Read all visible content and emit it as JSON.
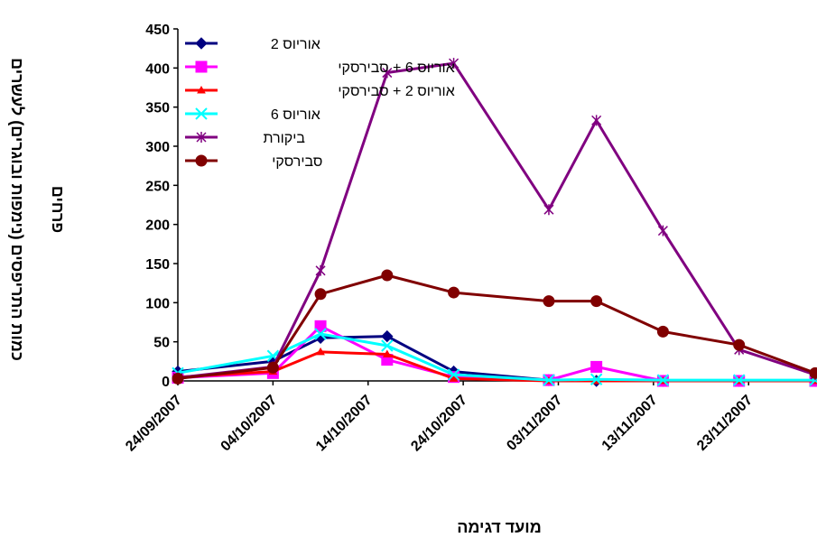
{
  "chart_data": {
    "type": "line",
    "xlabel": "מועד דגימה",
    "ylabel_lines": [
      "כמות התריפסים (נימפות ובוגרים) לעשרים",
      "פרחים"
    ],
    "ylim": [
      0,
      450
    ],
    "yticks": [
      0,
      50,
      100,
      150,
      200,
      250,
      300,
      350,
      400,
      450
    ],
    "xlim": [
      "24/09/2007",
      "30/11/2007"
    ],
    "xtick_labels": [
      "24/09/2007",
      "04/10/2007",
      "14/10/2007",
      "24/10/2007",
      "03/11/2007",
      "13/11/2007",
      "23/11/2007"
    ],
    "x": [
      "24/09/2007",
      "04/10/2007",
      "09/10/2007",
      "16/10/2007",
      "23/10/2007",
      "02/11/2007",
      "07/11/2007",
      "14/11/2007",
      "22/11/2007",
      "30/11/2007"
    ],
    "legend_position": "top-left",
    "series": [
      {
        "name": "אוריוס 2",
        "color": "#000080",
        "marker": "diamond",
        "values": [
          12,
          25,
          55,
          57,
          12,
          1,
          0,
          0,
          0,
          0
        ]
      },
      {
        "name": "אוריוס 6 + סבירסקי",
        "color": "#FF00FF",
        "marker": "square",
        "values": [
          4,
          10,
          70,
          27,
          5,
          1,
          18,
          0,
          0,
          0
        ]
      },
      {
        "name": "אוריוס 2 + סבירסקי",
        "color": "#FF0000",
        "marker": "triangle",
        "values": [
          5,
          12,
          37,
          34,
          3,
          0,
          0,
          0,
          0,
          0
        ]
      },
      {
        "name": "אוריוס 6",
        "color": "#00FFFF",
        "marker": "x",
        "values": [
          10,
          32,
          60,
          45,
          8,
          1,
          2,
          1,
          1,
          1
        ]
      },
      {
        "name": "ביקורת",
        "color": "#800080",
        "marker": "star",
        "values": [
          4,
          18,
          141,
          394,
          406,
          219,
          333,
          192,
          40,
          8
        ]
      },
      {
        "name": "סבירסקי",
        "color": "#800000",
        "marker": "circle",
        "values": [
          3,
          17,
          111,
          135,
          113,
          102,
          102,
          63,
          46,
          10
        ]
      }
    ]
  }
}
